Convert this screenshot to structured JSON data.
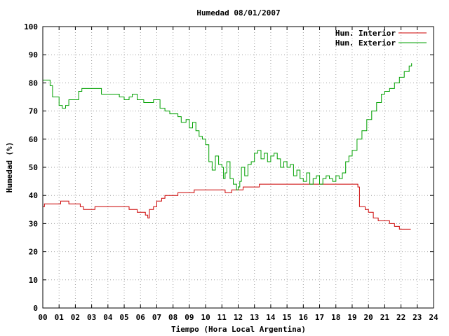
{
  "chart_data": {
    "type": "line",
    "title": "Humedad 08/01/2007",
    "xlabel": "Tiempo (Hora Local Argentina)",
    "ylabel": "Humedad (%)",
    "xlim": [
      0,
      24
    ],
    "ylim": [
      0,
      100
    ],
    "x_ticks": [
      "00",
      "01",
      "02",
      "03",
      "04",
      "05",
      "06",
      "07",
      "08",
      "09",
      "10",
      "11",
      "12",
      "13",
      "14",
      "15",
      "16",
      "17",
      "18",
      "19",
      "20",
      "21",
      "22",
      "23",
      "24"
    ],
    "y_ticks": [
      "0",
      "10",
      "20",
      "30",
      "40",
      "50",
      "60",
      "70",
      "80",
      "90",
      "100"
    ],
    "grid": true,
    "legend_position": "top-right",
    "series": [
      {
        "name": "Hum. Interior",
        "color": "#cc0000",
        "points": [
          [
            0.0,
            36
          ],
          [
            0.1,
            37
          ],
          [
            0.5,
            37
          ],
          [
            1.0,
            37
          ],
          [
            1.1,
            38
          ],
          [
            1.5,
            38
          ],
          [
            1.6,
            37
          ],
          [
            2.0,
            37
          ],
          [
            2.3,
            36
          ],
          [
            2.5,
            35
          ],
          [
            3.0,
            35
          ],
          [
            3.2,
            36
          ],
          [
            3.5,
            36
          ],
          [
            4.0,
            36
          ],
          [
            4.5,
            36
          ],
          [
            5.0,
            36
          ],
          [
            5.3,
            35
          ],
          [
            5.6,
            35
          ],
          [
            5.8,
            34
          ],
          [
            6.0,
            34
          ],
          [
            6.3,
            33
          ],
          [
            6.45,
            32
          ],
          [
            6.55,
            35
          ],
          [
            6.8,
            36
          ],
          [
            7.0,
            38
          ],
          [
            7.3,
            39
          ],
          [
            7.5,
            40
          ],
          [
            8.0,
            40
          ],
          [
            8.3,
            41
          ],
          [
            9.0,
            41
          ],
          [
            9.3,
            42
          ],
          [
            10.0,
            42
          ],
          [
            10.5,
            42
          ],
          [
            11.0,
            42
          ],
          [
            11.2,
            41
          ],
          [
            11.4,
            41
          ],
          [
            11.6,
            42
          ],
          [
            12.0,
            42
          ],
          [
            12.3,
            43
          ],
          [
            13.0,
            43
          ],
          [
            13.3,
            44
          ],
          [
            14.0,
            44
          ],
          [
            14.5,
            44
          ],
          [
            15.0,
            44
          ],
          [
            16.0,
            44
          ],
          [
            17.0,
            44
          ],
          [
            18.0,
            44
          ],
          [
            18.5,
            44
          ],
          [
            19.0,
            44
          ],
          [
            19.2,
            44
          ],
          [
            19.35,
            43
          ],
          [
            19.45,
            36
          ],
          [
            19.8,
            35
          ],
          [
            20.0,
            34
          ],
          [
            20.3,
            32
          ],
          [
            20.6,
            31
          ],
          [
            21.0,
            31
          ],
          [
            21.3,
            30
          ],
          [
            21.6,
            29
          ],
          [
            21.9,
            28
          ],
          [
            22.0,
            28
          ],
          [
            22.3,
            28
          ],
          [
            22.6,
            28
          ]
        ]
      },
      {
        "name": "Hum. Exterior",
        "color": "#00a000",
        "points": [
          [
            0.0,
            81
          ],
          [
            0.3,
            81
          ],
          [
            0.45,
            79
          ],
          [
            0.6,
            75
          ],
          [
            0.9,
            75
          ],
          [
            1.0,
            72
          ],
          [
            1.2,
            71
          ],
          [
            1.4,
            72
          ],
          [
            1.6,
            74
          ],
          [
            2.0,
            74
          ],
          [
            2.2,
            77
          ],
          [
            2.4,
            78
          ],
          [
            3.0,
            78
          ],
          [
            3.4,
            78
          ],
          [
            3.6,
            76
          ],
          [
            4.0,
            76
          ],
          [
            4.4,
            76
          ],
          [
            4.7,
            75
          ],
          [
            5.0,
            74
          ],
          [
            5.3,
            75
          ],
          [
            5.5,
            76
          ],
          [
            5.8,
            74
          ],
          [
            6.2,
            73
          ],
          [
            6.5,
            73
          ],
          [
            6.8,
            74
          ],
          [
            7.0,
            74
          ],
          [
            7.2,
            71
          ],
          [
            7.5,
            70
          ],
          [
            7.8,
            69
          ],
          [
            8.0,
            69
          ],
          [
            8.3,
            68
          ],
          [
            8.5,
            66
          ],
          [
            8.8,
            67
          ],
          [
            9.0,
            64
          ],
          [
            9.2,
            66
          ],
          [
            9.4,
            63
          ],
          [
            9.6,
            61
          ],
          [
            9.8,
            60
          ],
          [
            10.0,
            58
          ],
          [
            10.2,
            52
          ],
          [
            10.4,
            49
          ],
          [
            10.6,
            54
          ],
          [
            10.8,
            51
          ],
          [
            11.0,
            50
          ],
          [
            11.1,
            46
          ],
          [
            11.2,
            48
          ],
          [
            11.3,
            52
          ],
          [
            11.5,
            46
          ],
          [
            11.7,
            44
          ],
          [
            11.9,
            42
          ],
          [
            12.0,
            43
          ],
          [
            12.1,
            45
          ],
          [
            12.2,
            50
          ],
          [
            12.4,
            47
          ],
          [
            12.6,
            51
          ],
          [
            12.8,
            52
          ],
          [
            13.0,
            55
          ],
          [
            13.2,
            56
          ],
          [
            13.4,
            53
          ],
          [
            13.6,
            55
          ],
          [
            13.8,
            52
          ],
          [
            14.0,
            54
          ],
          [
            14.2,
            55
          ],
          [
            14.4,
            53
          ],
          [
            14.6,
            50
          ],
          [
            14.8,
            52
          ],
          [
            15.0,
            50
          ],
          [
            15.2,
            51
          ],
          [
            15.4,
            47
          ],
          [
            15.6,
            49
          ],
          [
            15.8,
            46
          ],
          [
            16.0,
            45
          ],
          [
            16.2,
            48
          ],
          [
            16.4,
            44
          ],
          [
            16.6,
            46
          ],
          [
            16.8,
            47
          ],
          [
            17.0,
            44
          ],
          [
            17.2,
            46
          ],
          [
            17.4,
            47
          ],
          [
            17.6,
            46
          ],
          [
            17.8,
            45
          ],
          [
            18.0,
            47
          ],
          [
            18.2,
            46
          ],
          [
            18.4,
            48
          ],
          [
            18.6,
            52
          ],
          [
            18.8,
            54
          ],
          [
            19.0,
            56
          ],
          [
            19.3,
            60
          ],
          [
            19.6,
            63
          ],
          [
            19.9,
            67
          ],
          [
            20.2,
            70
          ],
          [
            20.5,
            73
          ],
          [
            20.8,
            76
          ],
          [
            21.0,
            77
          ],
          [
            21.3,
            78
          ],
          [
            21.6,
            80
          ],
          [
            21.9,
            82
          ],
          [
            22.2,
            84
          ],
          [
            22.5,
            86
          ],
          [
            22.65,
            87
          ]
        ]
      }
    ]
  }
}
